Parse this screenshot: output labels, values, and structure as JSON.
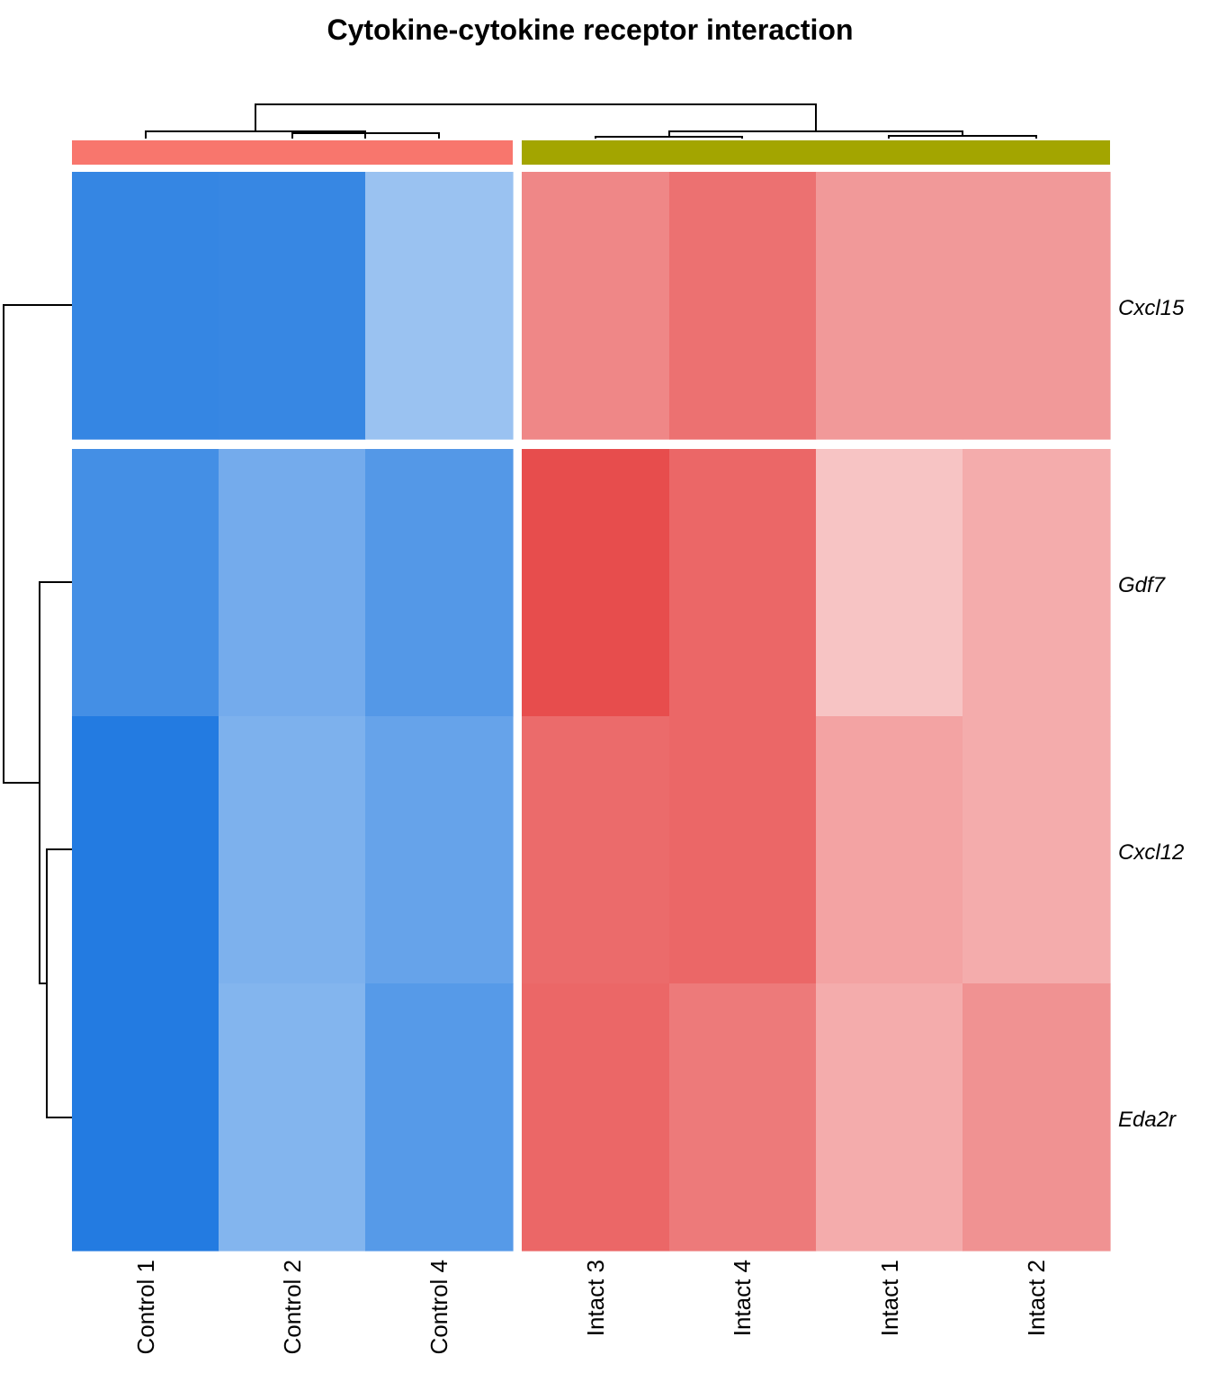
{
  "chart_data": {
    "type": "heatmap",
    "title": "Cytokine-cytokine receptor interaction",
    "columns": [
      "Control 1",
      "Control 2",
      "Control 4",
      "Intact 3",
      "Intact 4",
      "Intact 1",
      "Intact 2"
    ],
    "rows": [
      "Cxcl15",
      "Gdf7",
      "Cxcl12",
      "Eda2r"
    ],
    "column_groups": [
      {
        "members": [
          "Control 1",
          "Control 2",
          "Control 4"
        ],
        "color": "#F8766D"
      },
      {
        "members": [
          "Intact 3",
          "Intact 4",
          "Intact 1",
          "Intact 2"
        ],
        "color": "#A3A500"
      }
    ],
    "row_splits": [
      [
        "Cxcl15"
      ],
      [
        "Gdf7",
        "Cxcl12",
        "Eda2r"
      ]
    ],
    "color_scale": {
      "low": "#1E78E0",
      "mid": "#FFFFFF",
      "high": "#E64646",
      "range": [
        -1,
        1
      ]
    },
    "values": [
      [
        -0.9,
        -0.89,
        -0.45,
        0.65,
        0.77,
        0.55,
        0.55
      ],
      [
        -0.83,
        -0.62,
        -0.76,
        0.96,
        0.82,
        0.32,
        0.45
      ],
      [
        -0.98,
        -0.58,
        -0.68,
        0.8,
        0.82,
        0.5,
        0.45
      ],
      [
        -0.98,
        -0.55,
        -0.75,
        0.82,
        0.72,
        0.45,
        0.59
      ]
    ]
  },
  "colors": {
    "dendrogram": "#000000",
    "background": "#FFFFFF"
  }
}
